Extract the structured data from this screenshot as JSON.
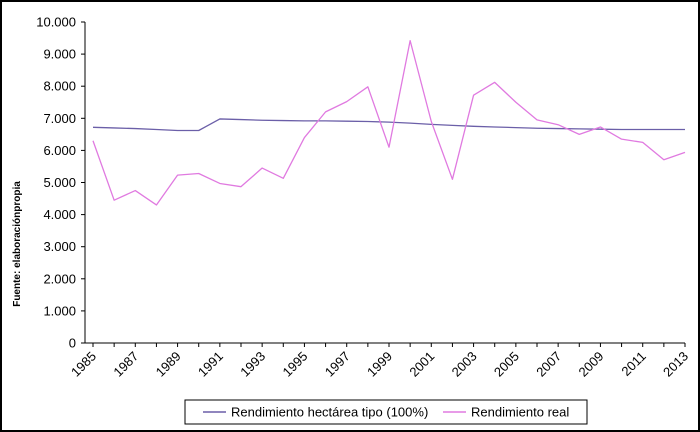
{
  "chart_data": {
    "type": "line",
    "ylabel": "Fuente: elaboraciónpropia",
    "ylim": [
      0,
      10000
    ],
    "y_ticks": [
      "0",
      "1.000",
      "2.000",
      "3.000",
      "4.000",
      "5.000",
      "6.000",
      "7.000",
      "8.000",
      "9.000",
      "10.000"
    ],
    "x": [
      1985,
      1986,
      1987,
      1988,
      1989,
      1990,
      1991,
      1992,
      1993,
      1994,
      1995,
      1996,
      1997,
      1998,
      1999,
      2000,
      2001,
      2002,
      2003,
      2004,
      2005,
      2006,
      2007,
      2008,
      2009,
      2010,
      2011,
      2012,
      2013
    ],
    "x_tick_labels": [
      "1985",
      "1987",
      "1989",
      "1991",
      "1993",
      "1995",
      "1997",
      "1999",
      "2001",
      "2003",
      "2005",
      "2007",
      "2009",
      "2011",
      "2013"
    ],
    "grid": false,
    "legend_position": "bottom",
    "series": [
      {
        "name": "Rendimiento hectárea tipo (100%)",
        "color": "#6b5fa8",
        "values": [
          6720,
          6700,
          6680,
          6650,
          6620,
          6620,
          6980,
          6960,
          6940,
          6930,
          6920,
          6920,
          6910,
          6900,
          6880,
          6850,
          6810,
          6780,
          6750,
          6730,
          6710,
          6690,
          6680,
          6670,
          6660,
          6650,
          6650,
          6650,
          6650
        ]
      },
      {
        "name": "Rendimiento real",
        "color": "#e07ae0",
        "values": [
          6300,
          4450,
          4750,
          4300,
          5230,
          5280,
          4970,
          4870,
          5450,
          5130,
          6400,
          7200,
          7520,
          7980,
          6100,
          9420,
          6900,
          5100,
          7720,
          8120,
          7500,
          6950,
          6800,
          6500,
          6730,
          6350,
          6250,
          5710,
          5940
        ]
      }
    ]
  }
}
